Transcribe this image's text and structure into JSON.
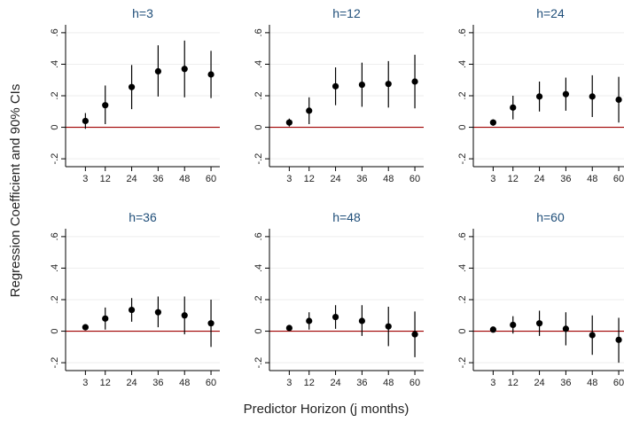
{
  "chart_data": {
    "type": "scatter",
    "subtype": "point-with-confidence-interval small multiples",
    "ylabel": "Regression Coefficient and 90% CIs",
    "xlabel": "Predictor Horizon (j months)",
    "x_ticks": [
      "3",
      "12",
      "24",
      "36",
      "48",
      "60"
    ],
    "y_ticks": [
      "-.2",
      "0",
      ".2",
      ".4",
      ".6"
    ],
    "ylim": [
      -0.25,
      0.65
    ],
    "reference_line_y": 0,
    "colors": {
      "marker": "#000000",
      "ci": "#000000",
      "zero_line": "#a00000",
      "gridline": "#eeeeee",
      "title": "#1f4e79"
    },
    "panels": [
      {
        "title": "h=3",
        "x": [
          3,
          12,
          24,
          36,
          48,
          60
        ],
        "points": [
          0.04,
          0.14,
          0.255,
          0.355,
          0.37,
          0.335
        ],
        "ci_low": [
          -0.01,
          0.02,
          0.115,
          0.195,
          0.19,
          0.185
        ],
        "ci_high": [
          0.09,
          0.265,
          0.395,
          0.52,
          0.55,
          0.485
        ]
      },
      {
        "title": "h=12",
        "x": [
          3,
          12,
          24,
          36,
          48,
          60
        ],
        "points": [
          0.03,
          0.105,
          0.26,
          0.27,
          0.275,
          0.29
        ],
        "ci_low": [
          0.005,
          0.02,
          0.14,
          0.13,
          0.125,
          0.12
        ],
        "ci_high": [
          0.055,
          0.19,
          0.38,
          0.41,
          0.42,
          0.46
        ]
      },
      {
        "title": "h=24",
        "x": [
          3,
          12,
          24,
          36,
          48,
          60
        ],
        "points": [
          0.03,
          0.125,
          0.195,
          0.21,
          0.195,
          0.175
        ],
        "ci_low": [
          0.01,
          0.05,
          0.1,
          0.105,
          0.065,
          0.03
        ],
        "ci_high": [
          0.05,
          0.2,
          0.29,
          0.315,
          0.33,
          0.32
        ]
      },
      {
        "title": "h=36",
        "x": [
          3,
          12,
          24,
          36,
          48,
          60
        ],
        "points": [
          0.025,
          0.08,
          0.135,
          0.12,
          0.1,
          0.05
        ],
        "ci_low": [
          0.01,
          0.01,
          0.06,
          0.025,
          -0.02,
          -0.1
        ],
        "ci_high": [
          0.04,
          0.15,
          0.21,
          0.22,
          0.22,
          0.2
        ]
      },
      {
        "title": "h=48",
        "x": [
          3,
          12,
          24,
          36,
          48,
          60
        ],
        "points": [
          0.02,
          0.065,
          0.09,
          0.065,
          0.03,
          -0.02
        ],
        "ci_low": [
          0.005,
          0.01,
          0.015,
          -0.03,
          -0.095,
          -0.165
        ],
        "ci_high": [
          0.035,
          0.12,
          0.165,
          0.165,
          0.155,
          0.125
        ]
      },
      {
        "title": "h=60",
        "x": [
          3,
          12,
          24,
          36,
          48,
          60
        ],
        "points": [
          0.01,
          0.04,
          0.05,
          0.015,
          -0.025,
          -0.055
        ],
        "ci_low": [
          0.0,
          -0.015,
          -0.03,
          -0.09,
          -0.15,
          -0.2
        ],
        "ci_high": [
          0.02,
          0.095,
          0.13,
          0.12,
          0.1,
          0.085
        ]
      }
    ]
  }
}
